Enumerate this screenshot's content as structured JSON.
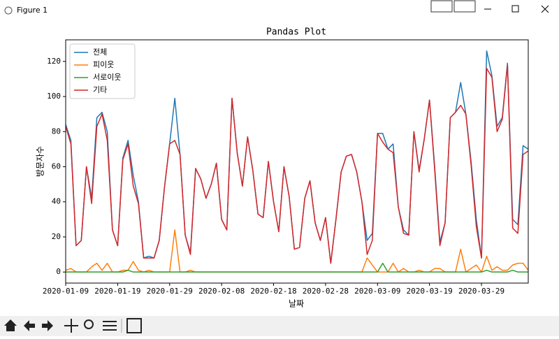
{
  "window": {
    "title": "Figure 1"
  },
  "chart_data": {
    "type": "line",
    "title": "Pandas Plot",
    "x_label": "날짜",
    "y_label": "방문자수",
    "x": [
      "2020-01-09",
      "2020-01-10",
      "2020-01-11",
      "2020-01-12",
      "2020-01-13",
      "2020-01-14",
      "2020-01-15",
      "2020-01-16",
      "2020-01-17",
      "2020-01-18",
      "2020-01-19",
      "2020-01-20",
      "2020-01-21",
      "2020-01-22",
      "2020-01-23",
      "2020-01-24",
      "2020-01-25",
      "2020-01-26",
      "2020-01-27",
      "2020-01-28",
      "2020-01-29",
      "2020-01-30",
      "2020-01-31",
      "2020-02-01",
      "2020-02-02",
      "2020-02-03",
      "2020-02-04",
      "2020-02-05",
      "2020-02-06",
      "2020-02-07",
      "2020-02-08",
      "2020-02-09",
      "2020-02-10",
      "2020-02-11",
      "2020-02-12",
      "2020-02-13",
      "2020-02-14",
      "2020-02-15",
      "2020-02-16",
      "2020-02-17",
      "2020-02-18",
      "2020-02-19",
      "2020-02-20",
      "2020-02-21",
      "2020-02-22",
      "2020-02-23",
      "2020-02-24",
      "2020-02-25",
      "2020-02-26",
      "2020-02-27",
      "2020-02-28",
      "2020-02-29",
      "2020-03-01",
      "2020-03-02",
      "2020-03-03",
      "2020-03-04",
      "2020-03-05",
      "2020-03-06",
      "2020-03-07",
      "2020-03-08",
      "2020-03-09",
      "2020-03-10",
      "2020-03-11",
      "2020-03-12",
      "2020-03-13",
      "2020-03-14",
      "2020-03-15",
      "2020-03-16",
      "2020-03-17",
      "2020-03-18",
      "2020-03-19",
      "2020-03-20",
      "2020-03-21",
      "2020-03-22",
      "2020-03-23",
      "2020-03-24",
      "2020-03-25",
      "2020-03-26",
      "2020-03-27",
      "2020-03-28",
      "2020-03-29",
      "2020-03-30",
      "2020-03-31",
      "2020-04-01",
      "2020-04-02",
      "2020-04-03",
      "2020-04-04",
      "2020-04-05",
      "2020-04-06",
      "2020-04-07"
    ],
    "series": [
      {
        "name": "전체",
        "color": "#1f77b4",
        "values": [
          84,
          75,
          15,
          18,
          60,
          42,
          88,
          91,
          80,
          24,
          15,
          65,
          75,
          55,
          40,
          8,
          9,
          8,
          18,
          48,
          73,
          99,
          67,
          21,
          11,
          59,
          53,
          42,
          50,
          62,
          30,
          24,
          99,
          68,
          49,
          77,
          58,
          33,
          31,
          63,
          40,
          23,
          60,
          43,
          13,
          14,
          42,
          52,
          28,
          18,
          31,
          5,
          30,
          57,
          66,
          67,
          57,
          40,
          18,
          22,
          79,
          79,
          70,
          73,
          37,
          24,
          21,
          80,
          58,
          76,
          98,
          60,
          17,
          28,
          88,
          91,
          108,
          90,
          63,
          30,
          8,
          126,
          112,
          83,
          88,
          119,
          30,
          27,
          72,
          70
        ]
      },
      {
        "name": "피이웃",
        "color": "#ff7f0e",
        "values": [
          1,
          2,
          0,
          0,
          0,
          3,
          5,
          1,
          5,
          0,
          0,
          1,
          1,
          6,
          1,
          0,
          1,
          0,
          0,
          0,
          0,
          24,
          0,
          0,
          1,
          0,
          0,
          0,
          0,
          0,
          0,
          0,
          0,
          0,
          0,
          0,
          0,
          0,
          0,
          0,
          0,
          0,
          0,
          0,
          0,
          0,
          0,
          0,
          0,
          0,
          0,
          0,
          0,
          0,
          0,
          0,
          0,
          0,
          8,
          4,
          0,
          0,
          0,
          5,
          0,
          2,
          0,
          0,
          1,
          0,
          0,
          2,
          2,
          0,
          0,
          0,
          13,
          0,
          2,
          4,
          0,
          9,
          1,
          3,
          1,
          1,
          4,
          5,
          5,
          1
        ]
      },
      {
        "name": "서로이웃",
        "color": "#2ca02c",
        "values": [
          0,
          0,
          0,
          0,
          0,
          0,
          0,
          0,
          0,
          0,
          0,
          0,
          1,
          0,
          0,
          0,
          0,
          0,
          0,
          0,
          0,
          0,
          0,
          0,
          0,
          0,
          0,
          0,
          0,
          0,
          0,
          0,
          0,
          0,
          0,
          0,
          0,
          0,
          0,
          0,
          0,
          0,
          0,
          0,
          0,
          0,
          0,
          0,
          0,
          0,
          0,
          0,
          0,
          0,
          0,
          0,
          0,
          0,
          0,
          0,
          0,
          5,
          0,
          0,
          0,
          0,
          0,
          0,
          0,
          0,
          0,
          0,
          0,
          0,
          0,
          0,
          0,
          0,
          0,
          0,
          0,
          1,
          0,
          0,
          0,
          0,
          1,
          0,
          0,
          0
        ]
      },
      {
        "name": "기타",
        "color": "#d62728",
        "values": [
          83,
          73,
          15,
          18,
          60,
          39,
          83,
          90,
          75,
          24,
          15,
          64,
          73,
          49,
          39,
          8,
          8,
          8,
          18,
          48,
          73,
          75,
          67,
          21,
          10,
          59,
          53,
          42,
          50,
          62,
          30,
          24,
          99,
          68,
          49,
          77,
          58,
          33,
          31,
          63,
          40,
          23,
          60,
          43,
          13,
          14,
          42,
          52,
          28,
          18,
          31,
          5,
          30,
          57,
          66,
          67,
          57,
          40,
          10,
          18,
          79,
          74,
          70,
          68,
          37,
          22,
          21,
          80,
          57,
          76,
          98,
          58,
          15,
          28,
          88,
          91,
          95,
          90,
          61,
          26,
          8,
          116,
          111,
          80,
          87,
          118,
          25,
          22,
          67,
          69
        ]
      }
    ],
    "xlim": [
      "2020-01-09",
      "2020-04-07"
    ],
    "xticks": [
      "2020-01-09",
      "2020-01-19",
      "2020-01-29",
      "2020-02-08",
      "2020-02-18",
      "2020-02-28",
      "2020-03-09",
      "2020-03-19",
      "2020-03-29"
    ],
    "ylim": [
      -6.3,
      132.3
    ],
    "yticks": [
      0,
      20,
      40,
      60,
      80,
      100,
      120
    ],
    "grid": false,
    "legend": "upper left"
  }
}
